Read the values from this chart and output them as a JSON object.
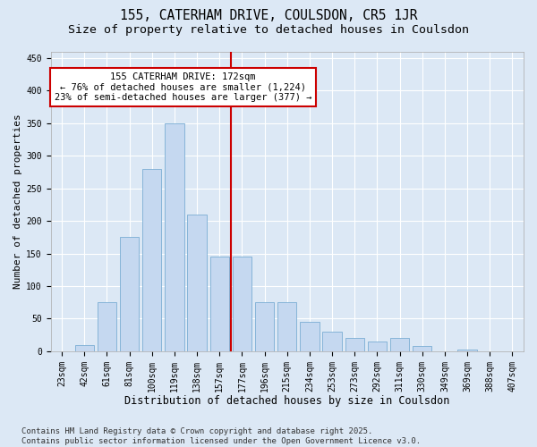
{
  "title": "155, CATERHAM DRIVE, COULSDON, CR5 1JR",
  "subtitle": "Size of property relative to detached houses in Coulsdon",
  "xlabel": "Distribution of detached houses by size in Coulsdon",
  "ylabel": "Number of detached properties",
  "bin_labels": [
    "23sqm",
    "42sqm",
    "61sqm",
    "81sqm",
    "100sqm",
    "119sqm",
    "138sqm",
    "157sqm",
    "177sqm",
    "196sqm",
    "215sqm",
    "234sqm",
    "253sqm",
    "273sqm",
    "292sqm",
    "311sqm",
    "330sqm",
    "349sqm",
    "369sqm",
    "388sqm",
    "407sqm"
  ],
  "bar_values": [
    0,
    10,
    75,
    175,
    280,
    350,
    210,
    145,
    145,
    75,
    75,
    45,
    30,
    20,
    15,
    20,
    8,
    0,
    3,
    0,
    0
  ],
  "bar_color": "#c5d8f0",
  "bar_edge_color": "#7aadd4",
  "vline_color": "#cc0000",
  "vline_xindex": 7.5,
  "annotation_text": "155 CATERHAM DRIVE: 172sqm\n← 76% of detached houses are smaller (1,224)\n23% of semi-detached houses are larger (377) →",
  "annotation_box_color": "#cc0000",
  "ylim": [
    0,
    460
  ],
  "yticks": [
    0,
    50,
    100,
    150,
    200,
    250,
    300,
    350,
    400,
    450
  ],
  "bg_color": "#dce8f5",
  "plot_bg_color": "#dce8f5",
  "grid_color": "#ffffff",
  "footer": "Contains HM Land Registry data © Crown copyright and database right 2025.\nContains public sector information licensed under the Open Government Licence v3.0.",
  "title_fontsize": 10.5,
  "subtitle_fontsize": 9.5,
  "xlabel_fontsize": 8.5,
  "ylabel_fontsize": 8,
  "tick_fontsize": 7,
  "annot_fontsize": 7.5,
  "footer_fontsize": 6.5
}
